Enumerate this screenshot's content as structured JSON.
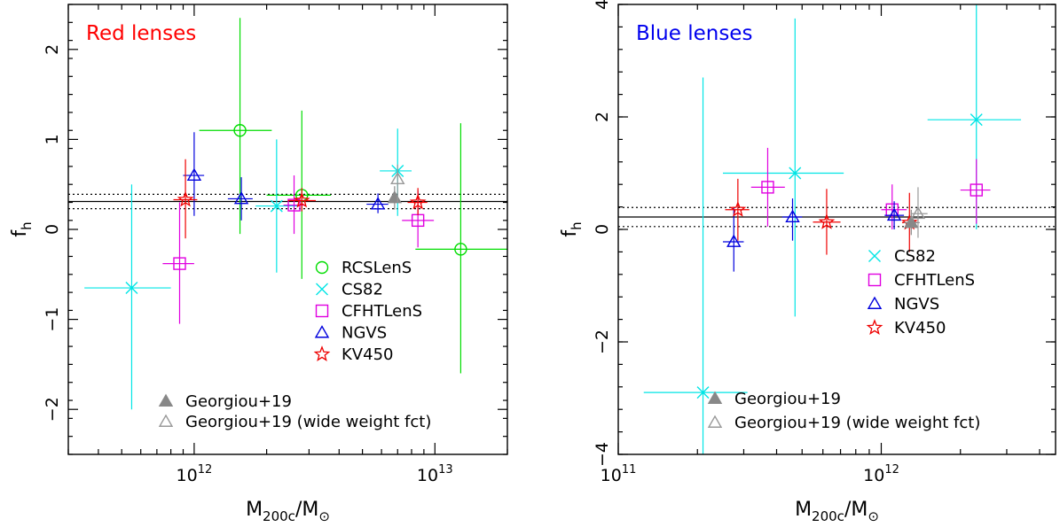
{
  "chart_data": [
    {
      "type": "scatter",
      "title": "Red lenses",
      "title_color": "#ff0000",
      "xlabel": "M_200c/M_⊙",
      "ylabel": "f_h",
      "xscale": "log",
      "xlim": [
        300000000000.0,
        20000000000000.0
      ],
      "ylim": [
        -2.5,
        2.5
      ],
      "xticks": [
        {
          "value": 1000000000000.0,
          "mantissa": "10",
          "exp": "12"
        },
        {
          "value": 10000000000000.0,
          "mantissa": "10",
          "exp": "13"
        }
      ],
      "yticks": [
        -2,
        -1,
        0,
        1,
        2
      ],
      "reference_lines": {
        "mean": 0.31,
        "lower": 0.23,
        "upper": 0.39
      },
      "legend_position": "bottom-right",
      "series": [
        {
          "name": "RCSLenS",
          "marker": "circle",
          "color": "#00dd00",
          "points": [
            {
              "x": 1550000000000.0,
              "y": 1.1,
              "xlo": 1050000000000.0,
              "xhi": 2100000000000.0,
              "ylo": -0.05,
              "yhi": 2.35
            },
            {
              "x": 2800000000000.0,
              "y": 0.38,
              "xlo": 2000000000000.0,
              "xhi": 3700000000000.0,
              "ylo": -0.55,
              "yhi": 1.32
            },
            {
              "x": 12800000000000.0,
              "y": -0.22,
              "xlo": 8300000000000.0,
              "xhi": 20000000000000.0,
              "ylo": -1.6,
              "yhi": 1.18
            }
          ]
        },
        {
          "name": "CS82",
          "marker": "cross",
          "color": "#00e5e5",
          "points": [
            {
              "x": 550000000000.0,
              "y": -0.65,
              "xlo": 350000000000.0,
              "xhi": 800000000000.0,
              "ylo": -2.0,
              "yhi": 0.5
            },
            {
              "x": 2200000000000.0,
              "y": 0.26,
              "xlo": 1800000000000.0,
              "xhi": 2700000000000.0,
              "ylo": -0.48,
              "yhi": 1.0
            },
            {
              "x": 7000000000000.0,
              "y": 0.65,
              "xlo": 5900000000000.0,
              "xhi": 8000000000000.0,
              "ylo": 0.15,
              "yhi": 1.12
            }
          ]
        },
        {
          "name": "CFHTLenS",
          "marker": "square",
          "color": "#e000e0",
          "points": [
            {
              "x": 870000000000.0,
              "y": -0.38,
              "xlo": 740000000000.0,
              "xhi": 1000000000000.0,
              "ylo": -1.05,
              "yhi": 0.3
            },
            {
              "x": 2600000000000.0,
              "y": 0.27,
              "xlo": 2350000000000.0,
              "xhi": 2900000000000.0,
              "ylo": -0.05,
              "yhi": 0.6
            },
            {
              "x": 8500000000000.0,
              "y": 0.1,
              "xlo": 7300000000000.0,
              "xhi": 9900000000000.0,
              "ylo": -0.2,
              "yhi": 0.43
            }
          ]
        },
        {
          "name": "NGVS",
          "marker": "triangle",
          "color": "#0000dd",
          "points": [
            {
              "x": 1000000000000.0,
              "y": 0.6,
              "xlo": 900000000000.0,
              "xhi": 1100000000000.0,
              "ylo": 0.15,
              "yhi": 1.08
            },
            {
              "x": 1570000000000.0,
              "y": 0.34,
              "xlo": 1380000000000.0,
              "xhi": 1750000000000.0,
              "ylo": 0.1,
              "yhi": 0.58
            },
            {
              "x": 5800000000000.0,
              "y": 0.28,
              "xlo": 5200000000000.0,
              "xhi": 6400000000000.0,
              "ylo": 0.18,
              "yhi": 0.4
            }
          ]
        },
        {
          "name": "KV450",
          "marker": "star",
          "color": "#ee0000",
          "points": [
            {
              "x": 920000000000.0,
              "y": 0.33,
              "xlo": 820000000000.0,
              "xhi": 1030000000000.0,
              "ylo": -0.1,
              "yhi": 0.78
            },
            {
              "x": 2800000000000.0,
              "y": 0.32,
              "xlo": 2450000000000.0,
              "xhi": 3200000000000.0,
              "ylo": 0.2,
              "yhi": 0.46
            },
            {
              "x": 8500000000000.0,
              "y": 0.3,
              "xlo": 7700000000000.0,
              "xhi": 9300000000000.0,
              "ylo": 0.16,
              "yhi": 0.46
            }
          ]
        },
        {
          "name": "Georgiou+19",
          "marker": "triangle-filled",
          "color": "#888888",
          "points": [
            {
              "x": 6800000000000.0,
              "y": 0.35,
              "xlo": 6800000000000.0,
              "xhi": 6800000000000.0,
              "ylo": 0.22,
              "yhi": 0.48
            }
          ]
        },
        {
          "name": "Georgiou+19 (wide weight fct)",
          "marker": "triangle",
          "color": "#999999",
          "points": [
            {
              "x": 7000000000000.0,
              "y": 0.56,
              "xlo": 7000000000000.0,
              "xhi": 7000000000000.0,
              "ylo": 0.3,
              "yhi": 0.72
            }
          ]
        }
      ],
      "legend_order": [
        0,
        1,
        2,
        3,
        4
      ],
      "legend2_order": [
        5,
        6
      ]
    },
    {
      "type": "scatter",
      "title": "Blue lenses",
      "title_color": "#0000ee",
      "xlabel": "M_200c/M_⊙",
      "ylabel": "f_h",
      "xscale": "log",
      "xlim": [
        100000000000.0,
        4600000000000.0
      ],
      "ylim": [
        -4,
        4
      ],
      "xticks": [
        {
          "value": 100000000000.0,
          "mantissa": "10",
          "exp": "11"
        },
        {
          "value": 1000000000000.0,
          "mantissa": "10",
          "exp": "12"
        }
      ],
      "yticks": [
        -4,
        -2,
        0,
        2,
        4
      ],
      "reference_lines": {
        "mean": 0.22,
        "lower": 0.05,
        "upper": 0.39
      },
      "legend_position": "bottom-right",
      "series": [
        {
          "name": "CS82",
          "marker": "cross",
          "color": "#00e5e5",
          "points": [
            {
              "x": 210000000000.0,
              "y": -2.9,
              "xlo": 125000000000.0,
              "xhi": 310000000000.0,
              "ylo": -4.0,
              "yhi": 2.7
            },
            {
              "x": 470000000000.0,
              "y": 1.0,
              "xlo": 250000000000.0,
              "xhi": 720000000000.0,
              "ylo": -1.55,
              "yhi": 3.75
            },
            {
              "x": 2300000000000.0,
              "y": 1.95,
              "xlo": 1500000000000.0,
              "xhi": 3400000000000.0,
              "ylo": 0.0,
              "yhi": 4.0
            }
          ]
        },
        {
          "name": "CFHTLenS",
          "marker": "square",
          "color": "#e000e0",
          "points": [
            {
              "x": 370000000000.0,
              "y": 0.75,
              "xlo": 320000000000.0,
              "xhi": 430000000000.0,
              "ylo": 0.05,
              "yhi": 1.45
            },
            {
              "x": 1100000000000.0,
              "y": 0.35,
              "xlo": 1000000000000.0,
              "xhi": 1250000000000.0,
              "ylo": 0.0,
              "yhi": 0.8
            },
            {
              "x": 2300000000000.0,
              "y": 0.7,
              "xlo": 2000000000000.0,
              "xhi": 2600000000000.0,
              "ylo": 0.1,
              "yhi": 1.25
            }
          ]
        },
        {
          "name": "NGVS",
          "marker": "triangle",
          "color": "#0000dd",
          "points": [
            {
              "x": 275000000000.0,
              "y": -0.22,
              "xlo": 250000000000.0,
              "xhi": 300000000000.0,
              "ylo": -0.75,
              "yhi": 0.4
            },
            {
              "x": 460000000000.0,
              "y": 0.22,
              "xlo": 420000000000.0,
              "xhi": 500000000000.0,
              "ylo": -0.2,
              "yhi": 0.55
            },
            {
              "x": 1120000000000.0,
              "y": 0.25,
              "xlo": 1030000000000.0,
              "xhi": 1220000000000.0,
              "ylo": 0.0,
              "yhi": 0.5
            }
          ]
        },
        {
          "name": "KV450",
          "marker": "star",
          "color": "#ee0000",
          "points": [
            {
              "x": 285000000000.0,
              "y": 0.35,
              "xlo": 255000000000.0,
              "xhi": 315000000000.0,
              "ylo": -0.2,
              "yhi": 0.9
            },
            {
              "x": 620000000000.0,
              "y": 0.13,
              "xlo": 550000000000.0,
              "xhi": 700000000000.0,
              "ylo": -0.45,
              "yhi": 0.72
            },
            {
              "x": 1280000000000.0,
              "y": 0.12,
              "xlo": 1200000000000.0,
              "xhi": 1380000000000.0,
              "ylo": -0.4,
              "yhi": 0.65
            }
          ]
        },
        {
          "name": "Georgiou+19",
          "marker": "triangle-filled",
          "color": "#888888",
          "points": [
            {
              "x": 1300000000000.0,
              "y": 0.12,
              "xlo": 1220000000000.0,
              "xhi": 1400000000000.0,
              "ylo": -0.1,
              "yhi": 0.35
            }
          ]
        },
        {
          "name": "Georgiou+19 (wide weight fct)",
          "marker": "triangle",
          "color": "#999999",
          "points": [
            {
              "x": 1380000000000.0,
              "y": 0.28,
              "xlo": 1300000000000.0,
              "xhi": 1500000000000.0,
              "ylo": -0.15,
              "yhi": 0.75
            }
          ]
        }
      ],
      "legend_order": [
        0,
        1,
        2,
        3
      ],
      "legend2_order": [
        4,
        5
      ]
    }
  ]
}
